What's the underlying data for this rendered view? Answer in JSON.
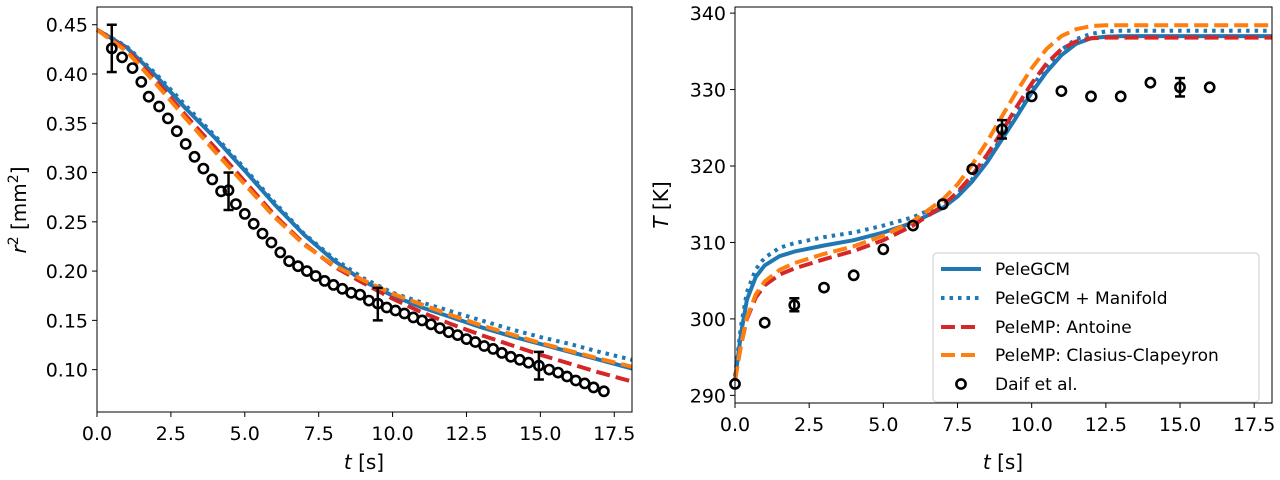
{
  "chart_data": [
    {
      "type": "line",
      "xlabel_var": "t",
      "xlabel_unit": "[s]",
      "ylabel_var": "r",
      "ylabel_sup": "2",
      "ylabel_unit_pre": "[mm",
      "ylabel_unit_sup": "2",
      "ylabel_unit_post": "]",
      "xlim": [
        0,
        18.1
      ],
      "ylim": [
        0.057,
        0.468
      ],
      "xticks": [
        "0.0",
        "2.5",
        "5.0",
        "7.5",
        "10.0",
        "12.5",
        "15.0",
        "17.5"
      ],
      "xtick_values": [
        0,
        2.5,
        5,
        7.5,
        10,
        12.5,
        15,
        17.5
      ],
      "yticks": [
        "0.10",
        "0.15",
        "0.20",
        "0.25",
        "0.30",
        "0.35",
        "0.40",
        "0.45"
      ],
      "ytick_values": [
        0.1,
        0.15,
        0.2,
        0.25,
        0.3,
        0.35,
        0.4,
        0.45
      ],
      "series": [
        {
          "name": "PeleGCM",
          "style": "solid",
          "color": "#1f77b4",
          "x": [
            0,
            1,
            2,
            3,
            4,
            5,
            6,
            7,
            8,
            9,
            10,
            11,
            12,
            13,
            14,
            15,
            16,
            17,
            18.1
          ],
          "y": [
            0.445,
            0.427,
            0.398,
            0.365,
            0.335,
            0.302,
            0.268,
            0.237,
            0.211,
            0.19,
            0.175,
            0.163,
            0.153,
            0.143,
            0.134,
            0.126,
            0.118,
            0.11,
            0.101
          ]
        },
        {
          "name": "PeleGCM + Manifold",
          "style": "dotted",
          "color": "#1f77b4",
          "x": [
            0,
            1,
            2,
            3,
            4,
            5,
            6,
            7,
            8,
            9,
            10,
            11,
            12,
            13,
            14,
            15,
            16,
            17,
            18.1
          ],
          "y": [
            0.445,
            0.428,
            0.4,
            0.368,
            0.337,
            0.304,
            0.27,
            0.238,
            0.213,
            0.193,
            0.178,
            0.168,
            0.159,
            0.15,
            0.141,
            0.133,
            0.126,
            0.118,
            0.11
          ]
        },
        {
          "name": "PeleMP: Antoine",
          "style": "dashed",
          "color": "#d62728",
          "x": [
            0,
            1,
            2,
            3,
            4,
            5,
            6,
            7,
            8,
            9,
            10,
            11,
            12,
            13,
            14,
            15,
            16,
            17,
            18.1
          ],
          "y": [
            0.445,
            0.425,
            0.393,
            0.358,
            0.325,
            0.291,
            0.257,
            0.228,
            0.205,
            0.188,
            0.172,
            0.158,
            0.146,
            0.135,
            0.125,
            0.115,
            0.106,
            0.097,
            0.088
          ]
        },
        {
          "name": "PeleMP: Clasius-Clapeyron",
          "style": "dashed",
          "color": "#ff7f0e",
          "x": [
            0,
            1,
            2,
            3,
            4,
            5,
            6,
            7,
            8,
            9,
            10,
            11,
            12,
            13,
            14,
            15,
            16,
            17,
            18.1
          ],
          "y": [
            0.445,
            0.423,
            0.39,
            0.355,
            0.321,
            0.288,
            0.255,
            0.227,
            0.206,
            0.191,
            0.177,
            0.166,
            0.155,
            0.145,
            0.136,
            0.127,
            0.119,
            0.111,
            0.103
          ]
        }
      ],
      "scatter": {
        "name": "Daif et al.",
        "x": [
          0.5,
          0.85,
          1.2,
          1.5,
          1.75,
          2.1,
          2.4,
          2.7,
          3.0,
          3.3,
          3.6,
          3.9,
          4.2,
          4.45,
          4.7,
          5.0,
          5.3,
          5.6,
          5.9,
          6.2,
          6.5,
          6.8,
          7.1,
          7.4,
          7.7,
          8.0,
          8.3,
          8.6,
          8.9,
          9.2,
          9.5,
          9.8,
          10.1,
          10.4,
          10.7,
          11.0,
          11.3,
          11.6,
          11.9,
          12.2,
          12.5,
          12.8,
          13.1,
          13.4,
          13.7,
          14.0,
          14.3,
          14.6,
          14.95,
          15.3,
          15.6,
          15.9,
          16.2,
          16.5,
          16.8,
          17.15
        ],
        "y": [
          0.426,
          0.417,
          0.406,
          0.392,
          0.377,
          0.367,
          0.355,
          0.342,
          0.329,
          0.316,
          0.304,
          0.293,
          0.281,
          0.282,
          0.268,
          0.258,
          0.248,
          0.238,
          0.229,
          0.219,
          0.21,
          0.205,
          0.2,
          0.195,
          0.19,
          0.186,
          0.182,
          0.178,
          0.176,
          0.17,
          0.167,
          0.163,
          0.16,
          0.157,
          0.153,
          0.15,
          0.146,
          0.142,
          0.138,
          0.135,
          0.131,
          0.128,
          0.124,
          0.121,
          0.117,
          0.113,
          0.11,
          0.107,
          0.104,
          0.1,
          0.097,
          0.093,
          0.089,
          0.086,
          0.082,
          0.078
        ],
        "errorbars": [
          {
            "x": 0.5,
            "y": 0.426,
            "lo": 0.402,
            "hi": 0.45
          },
          {
            "x": 4.45,
            "y": 0.282,
            "lo": 0.262,
            "hi": 0.3
          },
          {
            "x": 9.5,
            "y": 0.167,
            "lo": 0.15,
            "hi": 0.183
          },
          {
            "x": 14.95,
            "y": 0.104,
            "lo": 0.09,
            "hi": 0.118
          }
        ]
      }
    },
    {
      "type": "line",
      "xlabel_var": "t",
      "xlabel_unit": "[s]",
      "ylabel_var": "T",
      "ylabel_unit": "[K]",
      "xlim": [
        0,
        18.1
      ],
      "ylim": [
        289.0,
        340.8
      ],
      "xticks": [
        "0.0",
        "2.5",
        "5.0",
        "7.5",
        "10.0",
        "12.5",
        "15.0",
        "17.5"
      ],
      "xtick_values": [
        0,
        2.5,
        5,
        7.5,
        10,
        12.5,
        15,
        17.5
      ],
      "yticks": [
        "290",
        "300",
        "310",
        "320",
        "330",
        "340"
      ],
      "ytick_values": [
        290,
        300,
        310,
        320,
        330,
        340
      ],
      "legend_position": "lower-right",
      "series": [
        {
          "name": "PeleGCM",
          "style": "solid",
          "color": "#1f77b4",
          "x": [
            0,
            0.2,
            0.4,
            0.7,
            1.0,
            1.5,
            2.0,
            3.0,
            4.0,
            5.0,
            6.0,
            7.0,
            7.5,
            8.0,
            8.5,
            9.0,
            9.5,
            10.0,
            10.5,
            11.0,
            11.5,
            12.0,
            12.5,
            13.0,
            14.0,
            15.0,
            16.0,
            17.0,
            18.1
          ],
          "y": [
            292.0,
            298.0,
            302.5,
            305.5,
            307.0,
            308.2,
            308.8,
            309.6,
            310.3,
            311.3,
            312.6,
            314.5,
            316.0,
            318.0,
            320.5,
            323.5,
            326.5,
            329.6,
            332.3,
            334.5,
            336.0,
            336.7,
            336.9,
            337.0,
            337.0,
            337.0,
            337.0,
            337.0,
            337.0
          ]
        },
        {
          "name": "PeleGCM + Manifold",
          "style": "dotted",
          "color": "#1f77b4",
          "x": [
            0,
            0.2,
            0.4,
            0.7,
            1.0,
            1.5,
            2.0,
            3.0,
            4.0,
            5.0,
            6.0,
            7.0,
            7.5,
            8.0,
            8.5,
            9.0,
            9.5,
            10.0,
            10.5,
            11.0,
            11.5,
            12.0,
            12.5,
            13.0,
            14.0,
            15.0,
            16.0,
            17.0,
            18.1
          ],
          "y": [
            292.5,
            299.0,
            303.5,
            306.5,
            308.0,
            309.3,
            309.9,
            310.7,
            311.3,
            312.2,
            313.3,
            315.0,
            316.4,
            318.3,
            320.8,
            323.8,
            327.0,
            330.3,
            333.0,
            335.2,
            336.6,
            337.3,
            337.6,
            337.7,
            337.7,
            337.7,
            337.7,
            337.7,
            337.7
          ]
        },
        {
          "name": "PeleMP: Antoine",
          "style": "dashed",
          "color": "#d62728",
          "x": [
            0,
            0.2,
            0.4,
            0.7,
            1.0,
            1.5,
            2.0,
            3.0,
            4.0,
            5.0,
            6.0,
            7.0,
            7.5,
            8.0,
            8.5,
            9.0,
            9.5,
            10.0,
            10.5,
            11.0,
            11.5,
            12.0,
            12.5,
            13.0,
            14.0,
            15.0,
            16.0,
            17.0,
            18.1
          ],
          "y": [
            292.0,
            296.5,
            300.0,
            302.8,
            304.4,
            305.8,
            306.6,
            307.8,
            308.9,
            310.3,
            312.2,
            314.8,
            316.6,
            318.8,
            321.5,
            324.5,
            327.8,
            330.8,
            333.4,
            335.3,
            336.3,
            336.7,
            336.8,
            336.8,
            336.8,
            336.8,
            336.8,
            336.8,
            336.8
          ]
        },
        {
          "name": "PeleMP: Clasius-Clapeyron",
          "style": "dashed",
          "color": "#ff7f0e",
          "x": [
            0,
            0.2,
            0.4,
            0.7,
            1.0,
            1.5,
            2.0,
            3.0,
            4.0,
            5.0,
            6.0,
            7.0,
            7.5,
            8.0,
            8.5,
            9.0,
            9.5,
            10.0,
            10.5,
            11.0,
            11.5,
            12.0,
            12.5,
            13.0,
            14.0,
            15.0,
            16.0,
            17.0,
            18.1
          ],
          "y": [
            292.0,
            296.5,
            300.2,
            303.2,
            304.9,
            306.4,
            307.3,
            308.5,
            309.5,
            310.9,
            312.8,
            315.6,
            317.6,
            320.2,
            323.2,
            326.5,
            329.8,
            332.8,
            335.3,
            337.0,
            337.9,
            338.3,
            338.4,
            338.4,
            338.4,
            338.4,
            338.4,
            338.4,
            338.4
          ]
        }
      ],
      "scatter": {
        "name": "Daif et al.",
        "x": [
          0,
          1,
          2,
          3,
          4,
          5,
          6,
          7,
          8,
          9,
          10,
          11,
          12,
          13,
          14,
          15,
          16
        ],
        "y": [
          291.5,
          299.5,
          301.8,
          304.1,
          305.7,
          309.1,
          312.2,
          315.0,
          319.6,
          324.8,
          329.1,
          329.8,
          329.1,
          329.1,
          330.9,
          330.3,
          330.3
        ],
        "errorbars": [
          {
            "x": 2,
            "y": 301.8,
            "lo": 301.0,
            "hi": 302.7
          },
          {
            "x": 9,
            "y": 324.8,
            "lo": 323.6,
            "hi": 326.0
          },
          {
            "x": 15,
            "y": 330.3,
            "lo": 329.1,
            "hi": 331.5
          }
        ]
      }
    }
  ]
}
